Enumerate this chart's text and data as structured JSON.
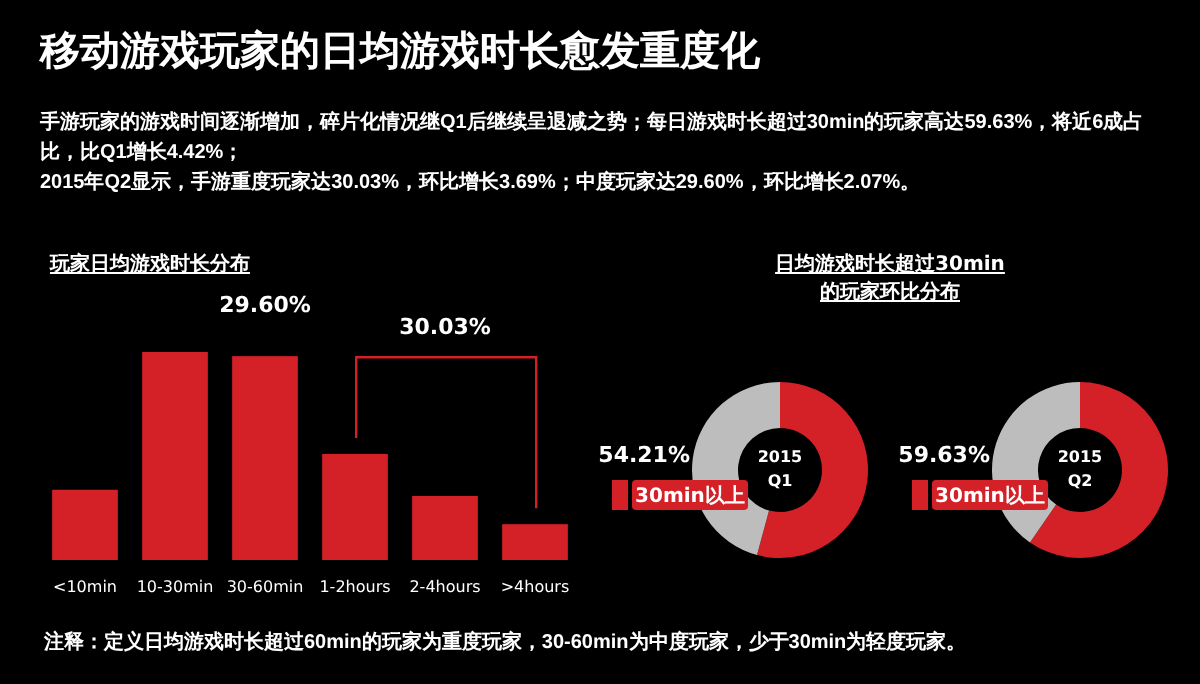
{
  "chart_data": [
    {
      "type": "other",
      "title": "移动游戏玩家的日均游戏时长愈发重度化",
      "subtitle": "手游玩家的游戏时间逐渐增加，碎片化情况继Q1后继续呈退减之势；每日游戏时长超过30min的玩家高达59.63%，将近6成占比，比Q1增长4.42%；\n2015年Q2显示，手游重度玩家达30.03%，环比增长3.69%；中度玩家达29.60%，环比增长2.07%。",
      "annotations": [
        "注释：定义日均游戏时长超过60min的玩家为重度玩家，30-60min为中度玩家，少于30min为轻度玩家。"
      ]
    },
    {
      "type": "bar",
      "title": "玩家日均游戏时长分布",
      "categories": [
        "<10min",
        "10-30min",
        "30-60min",
        "1-2hours",
        "2-4hours",
        ">4hours"
      ],
      "series": [
        {
          "color": "#d42027",
          "values": [
            10.2,
            30.2,
            29.6,
            15.4,
            9.3,
            5.2
          ],
          "value_labels": [
            null,
            null,
            "29.60%",
            null,
            null,
            null
          ]
        }
      ],
      "annotations": [
        "30.03%"
      ],
      "legend": false
    },
    {
      "type": "donut",
      "title": "日均游戏时长超过30min的玩家环比分布",
      "categories": [
        "30min以上",
        null
      ],
      "values": [
        54.21,
        45.79
      ],
      "colors": [
        "#d42027",
        "#bdbdbd"
      ],
      "value_labels": [
        "54.21%",
        null
      ],
      "annotations": [
        "2015 Q1"
      ],
      "legend": "left"
    },
    {
      "type": "donut",
      "categories": [
        "30min以上",
        null
      ],
      "values": [
        59.63,
        40.37
      ],
      "colors": [
        "#d42027",
        "#bdbdbd"
      ],
      "value_labels": [
        "59.63%",
        null
      ],
      "annotations": [
        "2015 Q2"
      ],
      "legend": "left"
    }
  ]
}
